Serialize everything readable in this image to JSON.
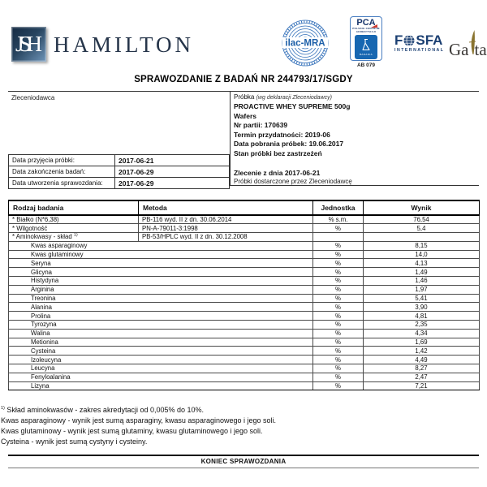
{
  "brand": {
    "square": "JSH",
    "name": "HAMILTON"
  },
  "certs": {
    "ilac": "ilac-MRA",
    "pca": {
      "title": "PCA",
      "sub1": "POLSKIE CENTRUM",
      "sub2": "AKREDYTACJI",
      "badania": "BADANIA",
      "code": "AB 079"
    },
    "fosfa": {
      "part1": "F",
      "part2": "SFA",
      "sub": "INTERNATIONAL"
    },
    "gafta": {
      "part1": "Ga",
      "part2": "ta"
    }
  },
  "title": "SPRAWOZDANIE Z BADAŃ NR 244793/17/SGDY",
  "client": {
    "label": "Zleceniodawca"
  },
  "dates": [
    {
      "label": "Data przyjęcia próbki:",
      "value": "2017-06-21"
    },
    {
      "label": "Data zakończenia badań:",
      "value": "2017-06-29"
    },
    {
      "label": "Data utworzenia sprawozdania:",
      "value": "2017-06-29"
    }
  ],
  "sample": {
    "label": "Próbka",
    "note": "(wg deklaracji Zleceniodawcy)",
    "lines": [
      "PROACTIVE WHEY SUPREME 500g",
      "Wafers",
      "Nr partii: 170639",
      "Termin przydatności: 2019-06",
      "Data pobrania próbek: 19.06.2017",
      "Stan próbki bez zastrzeżeń"
    ],
    "order": "Zlecenie z dnia 2017-06-21",
    "delivery": "Próbki dostarczone przez Zleceniodawcę"
  },
  "results": {
    "headers": [
      "Rodzaj badania",
      "Metoda",
      "Jednostka",
      "Wynik"
    ],
    "rows": [
      {
        "name": "* Białko (N*6,38)",
        "method": "PB-116 wyd. II z dn. 30.06.2014",
        "unit": "% s.m.",
        "result": "76,54"
      },
      {
        "name": "* Wilgotność",
        "method": "PN-A-79011-3:1998",
        "unit": "%",
        "result": "5,4"
      },
      {
        "name": "* Aminokwasy - skład ",
        "sup": "1)",
        "method": "PB-53/HPLC wyd. II z dn. 30.12.2008",
        "unit": "",
        "result": ""
      },
      {
        "name": "Kwas asparaginowy",
        "merged": true,
        "unit": "%",
        "result": "8,15"
      },
      {
        "name": "Kwas glutaminowy",
        "merged": true,
        "unit": "%",
        "result": "14,0"
      },
      {
        "name": "Seryna",
        "merged": true,
        "unit": "%",
        "result": "4,13"
      },
      {
        "name": "Glicyna",
        "merged": true,
        "unit": "%",
        "result": "1,49"
      },
      {
        "name": "Histydyna",
        "merged": true,
        "unit": "%",
        "result": "1,46"
      },
      {
        "name": "Arginina",
        "merged": true,
        "unit": "%",
        "result": "1,97"
      },
      {
        "name": "Treonina",
        "merged": true,
        "unit": "%",
        "result": "5,41"
      },
      {
        "name": "Alanina",
        "merged": true,
        "unit": "%",
        "result": "3,90"
      },
      {
        "name": "Prolina",
        "merged": true,
        "unit": "%",
        "result": "4,81"
      },
      {
        "name": "Tyrozyna",
        "merged": true,
        "unit": "%",
        "result": "2,35"
      },
      {
        "name": "Walina",
        "merged": true,
        "unit": "%",
        "result": "4,34"
      },
      {
        "name": "Metionina",
        "merged": true,
        "unit": "%",
        "result": "1,69"
      },
      {
        "name": "Cysteina",
        "merged": true,
        "unit": "%",
        "result": "1,42"
      },
      {
        "name": "Izoleucyna",
        "merged": true,
        "unit": "%",
        "result": "4,49"
      },
      {
        "name": "Leucyna",
        "merged": true,
        "unit": "%",
        "result": "8,27"
      },
      {
        "name": "Fenyloalanina",
        "merged": true,
        "unit": "%",
        "result": "2,47"
      },
      {
        "name": "Lizyna",
        "merged": true,
        "unit": "%",
        "result": "7,21"
      }
    ]
  },
  "footnotes": [
    {
      "sup": "1)",
      "text": " Skład aminokwasów - zakres akredytacji od 0,005% do 10%."
    },
    {
      "text": "Kwas asparaginowy - wynik jest sumą asparaginy, kwasu asparaginowego i jego soli."
    },
    {
      "text": "Kwas glutaminowy - wynik jest sumą glutaminy, kwasu glutaminowego i jego soli."
    },
    {
      "text": "Cysteina - wynik jest sumą cystyny i cysteiny."
    }
  ],
  "footer": {
    "end_label": "KONIEC SPRAWOZDANIA"
  },
  "colors": {
    "brand_navy": "#26354a",
    "stamp_blue": "#2f6db8",
    "pca_blue": "#1767b1",
    "fosfa_navy": "#1b3f72",
    "gafta_gold": "#8a7430",
    "accent_red": "#d03a2f"
  }
}
